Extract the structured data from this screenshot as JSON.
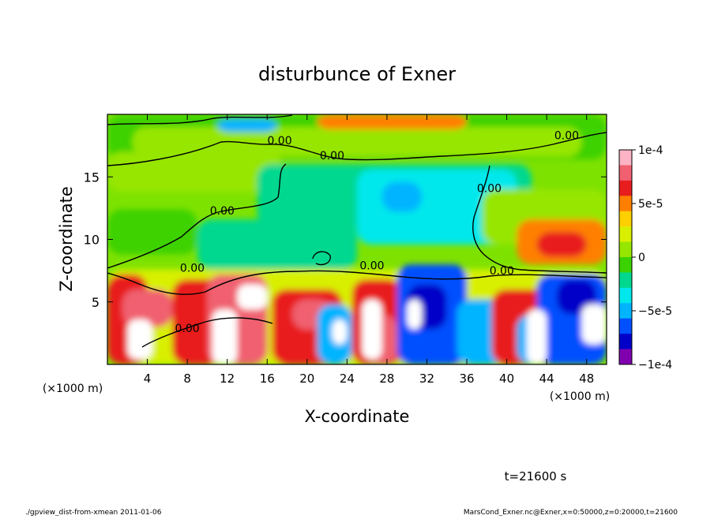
{
  "chart_data": {
    "type": "heatmap",
    "title": "disturbunce of Exner",
    "xlabel": "X-coordinate",
    "ylabel": "Z-coordinate",
    "x_units": "(×1000 m)",
    "y_units": "(×1000 m)",
    "xlim": [
      0,
      50
    ],
    "ylim": [
      0,
      20
    ],
    "x_ticks": [
      "4",
      "8",
      "12",
      "16",
      "20",
      "24",
      "28",
      "32",
      "36",
      "40",
      "44",
      "48"
    ],
    "x_tick_values": [
      4,
      8,
      12,
      16,
      20,
      24,
      28,
      32,
      36,
      40,
      44,
      48
    ],
    "y_ticks": [
      "5",
      "10",
      "15"
    ],
    "y_tick_values": [
      5,
      10,
      15
    ],
    "colorbar": {
      "range": [
        -0.0001,
        0.0001
      ],
      "labels": [
        "1e-4",
        "5e-5",
        "0",
        "−5e-5",
        "−1e-4"
      ],
      "label_values": [
        0.0001,
        5e-05,
        0,
        -5e-05,
        -0.0001
      ],
      "colors": [
        "#fdb3c4",
        "#f06070",
        "#e81e1e",
        "#ff8000",
        "#ffd000",
        "#d8f000",
        "#96e600",
        "#3cd200",
        "#00d890",
        "#00e8ec",
        "#00b4ff",
        "#0050ff",
        "#0000c8",
        "#8000b0"
      ]
    },
    "contour_labels": [
      "0.00",
      "0.00",
      "0.00",
      "0.00",
      "0.00",
      "0.00",
      "0.00",
      "0.00",
      "0.00"
    ],
    "grid": false
  },
  "footer": {
    "time": "t=21600 s",
    "left_note": "./gpview_dist-from-xmean  2011-01-06",
    "right_note": "MarsCond_Exner.nc@Exner,x=0:50000,z=0:20000,t=21600"
  }
}
